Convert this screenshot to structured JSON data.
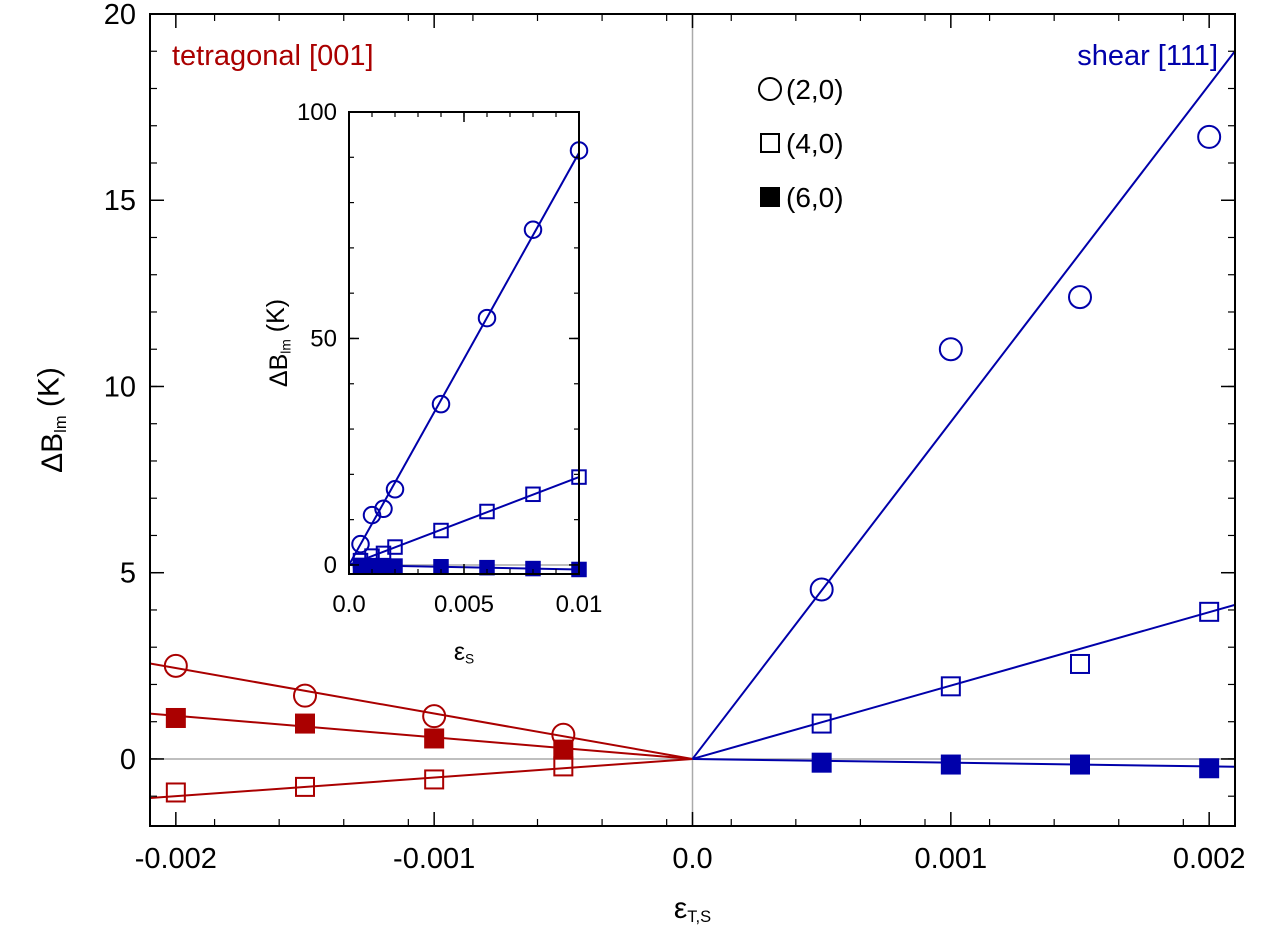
{
  "colors": {
    "tetragonal": "#aa0000",
    "shear": "#0000aa",
    "zero_line": "#aaaaaa",
    "axes": "#000000"
  },
  "chart_data": [
    {
      "type": "scatter",
      "role": "main",
      "xlabel": {
        "main": "ε",
        "sub": "T,S"
      },
      "ylabel": {
        "main": "ΔB",
        "sub": "lm",
        "unit": " (K)"
      },
      "xlim": [
        -0.0021,
        0.0021
      ],
      "ylim": [
        -1.8,
        20
      ],
      "x_ticks": [
        {
          "value": -0.002,
          "label": "-0.002"
        },
        {
          "value": -0.001,
          "label": "-0.001"
        },
        {
          "value": 0.0,
          "label": "0.0"
        },
        {
          "value": 0.001,
          "label": "0.001"
        },
        {
          "value": 0.002,
          "label": "0.002"
        }
      ],
      "y_ticks": [
        {
          "value": 0,
          "label": "0"
        },
        {
          "value": 5,
          "label": "5"
        },
        {
          "value": 10,
          "label": "10"
        },
        {
          "value": 15,
          "label": "15"
        },
        {
          "value": 20,
          "label": "20"
        }
      ],
      "region_labels": {
        "tetragonal": "tetragonal [001]",
        "shear": "shear [111]"
      },
      "legend": [
        {
          "label": "(2,0)",
          "marker": "circle-open"
        },
        {
          "label": "(4,0)",
          "marker": "square-open"
        },
        {
          "label": "(6,0)",
          "marker": "square-filled"
        }
      ],
      "series": [
        {
          "group": "tetragonal",
          "mode": "(2,0)",
          "marker": "circle-open",
          "points": [
            [
              -0.002,
              2.5
            ],
            [
              -0.0015,
              1.7
            ],
            [
              -0.001,
              1.15
            ],
            [
              -0.0005,
              0.65
            ]
          ],
          "fit_slope": -1220
        },
        {
          "group": "tetragonal",
          "mode": "(4,0)",
          "marker": "square-open",
          "points": [
            [
              -0.002,
              -0.9
            ],
            [
              -0.0015,
              -0.75
            ],
            [
              -0.001,
              -0.55
            ],
            [
              -0.0005,
              -0.2
            ]
          ],
          "fit_slope": 500
        },
        {
          "group": "tetragonal",
          "mode": "(6,0)",
          "marker": "square-filled",
          "points": [
            [
              -0.002,
              1.1
            ],
            [
              -0.0015,
              0.95
            ],
            [
              -0.001,
              0.55
            ],
            [
              -0.0005,
              0.25
            ]
          ],
          "fit_slope": -580
        },
        {
          "group": "shear",
          "mode": "(2,0)",
          "marker": "circle-open",
          "points": [
            [
              0.0005,
              4.55
            ],
            [
              0.001,
              11.0
            ],
            [
              0.0015,
              12.4
            ],
            [
              0.002,
              16.7
            ]
          ],
          "fit_slope": 9050
        },
        {
          "group": "shear",
          "mode": "(4,0)",
          "marker": "square-open",
          "points": [
            [
              0.0005,
              0.95
            ],
            [
              0.001,
              1.95
            ],
            [
              0.0015,
              2.55
            ],
            [
              0.002,
              3.95
            ]
          ],
          "fit_slope": 1970
        },
        {
          "group": "shear",
          "mode": "(6,0)",
          "marker": "square-filled",
          "points": [
            [
              0.0005,
              -0.1
            ],
            [
              0.001,
              -0.15
            ],
            [
              0.0015,
              -0.15
            ],
            [
              0.002,
              -0.25
            ]
          ],
          "fit_slope": -100
        }
      ]
    },
    {
      "type": "scatter",
      "role": "inset",
      "xlabel": {
        "main": "ε",
        "sub": "S"
      },
      "ylabel": {
        "main": "ΔB",
        "sub": "lm",
        "unit": " (K)"
      },
      "xlim": [
        0,
        0.01
      ],
      "ylim": [
        -2,
        100
      ],
      "x_ticks": [
        {
          "value": 0.0,
          "label": "0.0"
        },
        {
          "value": 0.005,
          "label": "0.005"
        },
        {
          "value": 0.01,
          "label": "0.01"
        }
      ],
      "y_ticks": [
        {
          "value": 0,
          "label": "0"
        },
        {
          "value": 50,
          "label": "50"
        },
        {
          "value": 100,
          "label": "100"
        }
      ],
      "series": [
        {
          "group": "shear",
          "mode": "(2,0)",
          "marker": "circle-open",
          "points": [
            [
              0.0005,
              4.6
            ],
            [
              0.001,
              11
            ],
            [
              0.0015,
              12.4
            ],
            [
              0.002,
              16.7
            ],
            [
              0.004,
              35.5
            ],
            [
              0.006,
              54.5
            ],
            [
              0.008,
              74
            ],
            [
              0.01,
              91.5
            ]
          ],
          "fit_slope": 9100
        },
        {
          "group": "shear",
          "mode": "(4,0)",
          "marker": "square-open",
          "points": [
            [
              0.0005,
              0.95
            ],
            [
              0.001,
              1.95
            ],
            [
              0.0015,
              2.55
            ],
            [
              0.002,
              3.95
            ],
            [
              0.004,
              7.6
            ],
            [
              0.006,
              11.8
            ],
            [
              0.008,
              15.6
            ],
            [
              0.01,
              19.4
            ]
          ],
          "fit_slope": 1940
        },
        {
          "group": "shear",
          "mode": "(6,0)",
          "marker": "square-filled",
          "points": [
            [
              0.0005,
              -0.1
            ],
            [
              0.001,
              -0.15
            ],
            [
              0.0015,
              -0.15
            ],
            [
              0.002,
              -0.25
            ],
            [
              0.004,
              -0.4
            ],
            [
              0.006,
              -0.6
            ],
            [
              0.008,
              -0.8
            ],
            [
              0.01,
              -1.0
            ]
          ],
          "fit_slope": -100
        }
      ]
    }
  ]
}
